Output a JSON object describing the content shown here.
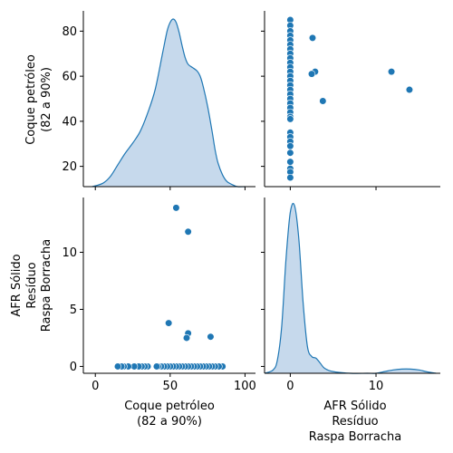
{
  "chart_data": {
    "type": "pairplot",
    "colors": {
      "marker": "#1f77b4",
      "kde_fill": "#c6d9ec",
      "kde_line": "#1f77b4"
    },
    "variables": [
      {
        "key": "coque",
        "label_lines": [
          "Coque petróleo",
          "(82 a 90%)"
        ]
      },
      {
        "key": "afr",
        "label_lines": [
          "AFR Sólido",
          "Resíduo",
          "Raspa Borracha"
        ]
      }
    ],
    "axes": {
      "coque": {
        "lim": [
          -8,
          107
        ],
        "ticks": [
          0,
          50,
          100
        ],
        "tick_labels": [
          "0",
          "50",
          "100"
        ]
      },
      "coque_y": {
        "lim": [
          11,
          89
        ],
        "ticks": [
          20,
          40,
          60,
          80
        ],
        "tick_labels": [
          "20",
          "40",
          "60",
          "80"
        ]
      },
      "afr": {
        "lim": [
          -3,
          17.5
        ],
        "ticks": [
          0,
          10
        ],
        "tick_labels": [
          "0",
          "10"
        ]
      },
      "afr_y": {
        "lim": [
          -0.6,
          14.8
        ],
        "ticks": [
          0,
          5,
          10
        ],
        "tick_labels": [
          "0",
          "5",
          "10"
        ]
      }
    },
    "kde_coque": {
      "x": [
        -2,
        5,
        10,
        15,
        20,
        25,
        30,
        35,
        40,
        45,
        48,
        50,
        52,
        54,
        56,
        58,
        60,
        62,
        65,
        68,
        70,
        72,
        75,
        78,
        80,
        82,
        85,
        88,
        92,
        95,
        100
      ],
      "density": [
        0.0,
        0.02,
        0.06,
        0.13,
        0.2,
        0.26,
        0.33,
        0.44,
        0.58,
        0.8,
        0.93,
        0.98,
        1.0,
        0.98,
        0.92,
        0.84,
        0.77,
        0.73,
        0.71,
        0.69,
        0.66,
        0.6,
        0.48,
        0.33,
        0.22,
        0.14,
        0.07,
        0.03,
        0.01,
        0.0,
        0.0
      ]
    },
    "kde_afr": {
      "x": [
        -3,
        -2,
        -1.5,
        -1,
        -0.5,
        0,
        0.5,
        1,
        1.5,
        2,
        2.5,
        3,
        3.5,
        4,
        5,
        7,
        9,
        10,
        11,
        12,
        13,
        14,
        15,
        16,
        17
      ],
      "density": [
        0.0,
        0.02,
        0.08,
        0.28,
        0.68,
        0.96,
        1.0,
        0.8,
        0.42,
        0.16,
        0.1,
        0.09,
        0.06,
        0.03,
        0.01,
        0.0,
        0.0,
        0.0,
        0.01,
        0.02,
        0.025,
        0.025,
        0.02,
        0.008,
        0.0
      ]
    },
    "scatter_points": [
      {
        "coque": 85,
        "afr": 0
      },
      {
        "coque": 82.5,
        "afr": 0
      },
      {
        "coque": 80,
        "afr": 0
      },
      {
        "coque": 78,
        "afr": 0
      },
      {
        "coque": 76,
        "afr": 0
      },
      {
        "coque": 74,
        "afr": 0
      },
      {
        "coque": 72,
        "afr": 0
      },
      {
        "coque": 70,
        "afr": 0
      },
      {
        "coque": 68,
        "afr": 0
      },
      {
        "coque": 66,
        "afr": 0
      },
      {
        "coque": 64,
        "afr": 0
      },
      {
        "coque": 62,
        "afr": 0
      },
      {
        "coque": 60,
        "afr": 0
      },
      {
        "coque": 58,
        "afr": 0
      },
      {
        "coque": 56,
        "afr": 0
      },
      {
        "coque": 54,
        "afr": 0
      },
      {
        "coque": 52,
        "afr": 0
      },
      {
        "coque": 50,
        "afr": 0
      },
      {
        "coque": 48,
        "afr": 0
      },
      {
        "coque": 46,
        "afr": 0
      },
      {
        "coque": 44,
        "afr": 0
      },
      {
        "coque": 42,
        "afr": 0
      },
      {
        "coque": 41,
        "afr": 0
      },
      {
        "coque": 35,
        "afr": 0
      },
      {
        "coque": 33,
        "afr": 0
      },
      {
        "coque": 31,
        "afr": 0
      },
      {
        "coque": 29,
        "afr": 0
      },
      {
        "coque": 26,
        "afr": 0
      },
      {
        "coque": 22,
        "afr": 0
      },
      {
        "coque": 19,
        "afr": 0
      },
      {
        "coque": 17.5,
        "afr": 0
      },
      {
        "coque": 15,
        "afr": 0
      },
      {
        "coque": 54,
        "afr": 13.9
      },
      {
        "coque": 62,
        "afr": 11.8
      },
      {
        "coque": 49,
        "afr": 3.8
      },
      {
        "coque": 62,
        "afr": 2.9
      },
      {
        "coque": 61,
        "afr": 2.5
      },
      {
        "coque": 77,
        "afr": 2.6
      }
    ]
  }
}
